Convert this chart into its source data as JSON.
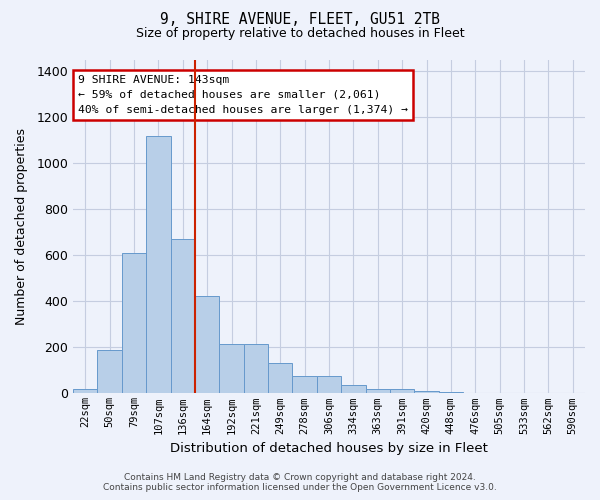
{
  "title_line1": "9, SHIRE AVENUE, FLEET, GU51 2TB",
  "title_line2": "Size of property relative to detached houses in Fleet",
  "xlabel": "Distribution of detached houses by size in Fleet",
  "ylabel": "Number of detached properties",
  "categories": [
    "22sqm",
    "50sqm",
    "79sqm",
    "107sqm",
    "136sqm",
    "164sqm",
    "192sqm",
    "221sqm",
    "249sqm",
    "278sqm",
    "306sqm",
    "334sqm",
    "363sqm",
    "391sqm",
    "420sqm",
    "448sqm",
    "476sqm",
    "505sqm",
    "533sqm",
    "562sqm",
    "590sqm"
  ],
  "values": [
    20,
    190,
    610,
    1120,
    670,
    425,
    215,
    215,
    130,
    75,
    75,
    35,
    20,
    20,
    12,
    8,
    0,
    0,
    0,
    0,
    0
  ],
  "bar_color": "#b8cfe8",
  "bar_edge_color": "#6699cc",
  "background_color": "#eef2fb",
  "grid_color": "#c5cde0",
  "red_line_x": 4.5,
  "annotation_text": "9 SHIRE AVENUE: 143sqm\n← 59% of detached houses are smaller (2,061)\n40% of semi-detached houses are larger (1,374) →",
  "annotation_box_color": "#ffffff",
  "annotation_box_edge": "#cc0000",
  "ylim": [
    0,
    1450
  ],
  "yticks": [
    0,
    200,
    400,
    600,
    800,
    1000,
    1200,
    1400
  ],
  "footer_line1": "Contains HM Land Registry data © Crown copyright and database right 2024.",
  "footer_line2": "Contains public sector information licensed under the Open Government Licence v3.0."
}
